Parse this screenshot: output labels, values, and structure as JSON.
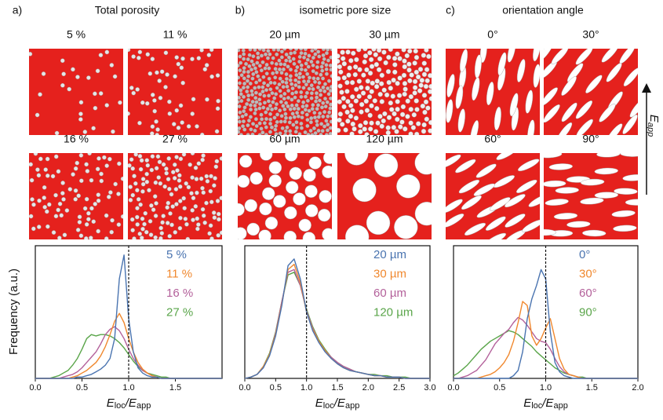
{
  "chart_data": [
    {
      "type": "line",
      "panel": "a)",
      "title": "Total porosity",
      "images": [
        "5 %",
        "11 %",
        "16 %",
        "27 %"
      ],
      "ylabel": "Frequency (a.u.)",
      "xlabel": {
        "main": "E",
        "sub": "loc",
        "main2": "/E",
        "sub2": "app"
      },
      "x": [
        0,
        0.05,
        0.1,
        0.15,
        0.2,
        0.25,
        0.3,
        0.35,
        0.4,
        0.45,
        0.5,
        0.55,
        0.6,
        0.65,
        0.7,
        0.75,
        0.8,
        0.85,
        0.9,
        0.95,
        1,
        1.05,
        1.1,
        1.15,
        1.2,
        1.25,
        1.3,
        1.35,
        1.4,
        1.45,
        1.5,
        1.55,
        1.6,
        1.65,
        1.7,
        1.75,
        1.8,
        1.85,
        1.9,
        1.95,
        2
      ],
      "series": [
        {
          "name": "5 %",
          "color": "#4a74b0",
          "values": [
            0,
            0,
            0,
            0,
            0,
            0,
            0,
            0,
            0,
            0.01,
            0.01,
            0.02,
            0.03,
            0.05,
            0.07,
            0.1,
            0.15,
            0.3,
            0.75,
            0.93,
            0.45,
            0.2,
            0.08,
            0.04,
            0.02,
            0.01,
            0.01,
            0,
            0,
            0,
            0,
            0,
            0,
            0,
            0,
            0,
            0,
            0,
            0,
            0,
            0
          ]
        },
        {
          "name": "11 %",
          "color": "#f0882e",
          "values": [
            0,
            0,
            0,
            0,
            0,
            0,
            0,
            0,
            0.01,
            0.02,
            0.04,
            0.06,
            0.09,
            0.12,
            0.17,
            0.24,
            0.33,
            0.43,
            0.49,
            0.42,
            0.3,
            0.2,
            0.12,
            0.07,
            0.04,
            0.02,
            0.01,
            0,
            0,
            0,
            0,
            0,
            0,
            0,
            0,
            0,
            0,
            0,
            0,
            0,
            0
          ]
        },
        {
          "name": "16 %",
          "color": "#b3609a",
          "values": [
            0,
            0,
            0,
            0,
            0,
            0,
            0.01,
            0.02,
            0.03,
            0.05,
            0.08,
            0.12,
            0.16,
            0.2,
            0.26,
            0.33,
            0.37,
            0.39,
            0.36,
            0.3,
            0.22,
            0.15,
            0.1,
            0.06,
            0.04,
            0.02,
            0.01,
            0,
            0,
            0,
            0,
            0,
            0,
            0,
            0,
            0,
            0,
            0,
            0,
            0,
            0
          ]
        },
        {
          "name": "27 %",
          "color": "#5aa54a",
          "values": [
            0,
            0,
            0,
            0,
            0.01,
            0.02,
            0.04,
            0.06,
            0.1,
            0.15,
            0.22,
            0.3,
            0.33,
            0.32,
            0.33,
            0.33,
            0.32,
            0.3,
            0.27,
            0.23,
            0.18,
            0.13,
            0.09,
            0.06,
            0.04,
            0.03,
            0.02,
            0.01,
            0.01,
            0,
            0,
            0,
            0,
            0,
            0,
            0,
            0,
            0,
            0,
            0,
            0
          ]
        }
      ],
      "xlim": [
        0,
        2
      ],
      "ylim": [
        0,
        1
      ],
      "xticks": [
        {
          "value": 0,
          "label": "0.0"
        },
        0.5,
        {
          "value": 1,
          "label": "1.0"
        },
        1.5
      ],
      "vline": 1,
      "legend": "upper right"
    },
    {
      "type": "line",
      "panel": "b)",
      "title": "isometric pore size",
      "images": [
        "20 µm",
        "30 µm",
        "60 µm",
        "120 µm"
      ],
      "xlabel": {
        "main": "E",
        "sub": "loc",
        "main2": "/E",
        "sub2": "app"
      },
      "x": [
        0,
        0.1,
        0.2,
        0.3,
        0.4,
        0.5,
        0.6,
        0.7,
        0.8,
        0.9,
        1,
        1.1,
        1.2,
        1.3,
        1.4,
        1.5,
        1.6,
        1.7,
        1.8,
        1.9,
        2,
        2.1,
        2.2,
        2.3,
        2.4,
        2.5,
        2.6,
        2.7,
        2.8,
        2.9,
        3
      ],
      "series": [
        {
          "name": "20 µm",
          "color": "#4a74b0",
          "values": [
            0,
            0.01,
            0.03,
            0.08,
            0.17,
            0.32,
            0.55,
            0.85,
            0.9,
            0.75,
            0.5,
            0.36,
            0.27,
            0.2,
            0.15,
            0.11,
            0.08,
            0.06,
            0.05,
            0.04,
            0.03,
            0.02,
            0.02,
            0.01,
            0.01,
            0.01,
            0,
            0,
            0,
            0,
            0
          ]
        },
        {
          "name": "30 µm",
          "color": "#f0882e",
          "values": [
            0,
            0.01,
            0.03,
            0.09,
            0.18,
            0.33,
            0.56,
            0.82,
            0.86,
            0.72,
            0.5,
            0.37,
            0.28,
            0.21,
            0.15,
            0.11,
            0.08,
            0.06,
            0.05,
            0.04,
            0.03,
            0.02,
            0.02,
            0.01,
            0.01,
            0.01,
            0,
            0,
            0,
            0,
            0
          ]
        },
        {
          "name": "60 µm",
          "color": "#b3609a",
          "values": [
            0,
            0.01,
            0.03,
            0.08,
            0.18,
            0.34,
            0.58,
            0.8,
            0.82,
            0.7,
            0.51,
            0.38,
            0.28,
            0.21,
            0.16,
            0.12,
            0.09,
            0.07,
            0.05,
            0.04,
            0.03,
            0.02,
            0.02,
            0.01,
            0.01,
            0.01,
            0,
            0,
            0,
            0,
            0
          ]
        },
        {
          "name": "120 µm",
          "color": "#5aa54a",
          "values": [
            0,
            0.01,
            0.03,
            0.09,
            0.19,
            0.35,
            0.58,
            0.78,
            0.8,
            0.7,
            0.52,
            0.39,
            0.29,
            0.22,
            0.16,
            0.12,
            0.09,
            0.07,
            0.05,
            0.04,
            0.03,
            0.03,
            0.02,
            0.02,
            0.01,
            0.01,
            0.01,
            0,
            0,
            0,
            0
          ]
        }
      ],
      "xlim": [
        0,
        3
      ],
      "ylim": [
        0,
        1
      ],
      "xticks": [
        {
          "value": 0,
          "label": "0.0"
        },
        0.5,
        {
          "value": 1,
          "label": "1.0"
        },
        1.5,
        {
          "value": 2,
          "label": "2.0"
        },
        2.5,
        {
          "value": 3,
          "label": "3.0"
        }
      ],
      "vline": 1,
      "legend": "upper right"
    },
    {
      "type": "line",
      "panel": "c)",
      "title": "orientation angle",
      "images": [
        "0°",
        "30°",
        "60°",
        "90°"
      ],
      "annotation": {
        "main": "E",
        "sub": "app"
      },
      "xlabel": {
        "main": "E",
        "sub": "loc",
        "main2": "/E",
        "sub2": "app"
      },
      "x": [
        0,
        0.05,
        0.1,
        0.15,
        0.2,
        0.25,
        0.3,
        0.35,
        0.4,
        0.45,
        0.5,
        0.55,
        0.6,
        0.65,
        0.7,
        0.75,
        0.8,
        0.85,
        0.9,
        0.95,
        1,
        1.05,
        1.1,
        1.15,
        1.2,
        1.25,
        1.3,
        1.35,
        1.4,
        1.45,
        1.5,
        1.55,
        1.6,
        1.65,
        1.7,
        1.75,
        1.8,
        1.85,
        1.9,
        1.95,
        2
      ],
      "series": [
        {
          "name": "0°",
          "color": "#4a74b0",
          "values": [
            0,
            0,
            0,
            0,
            0,
            0,
            0,
            0,
            0,
            0,
            0,
            0,
            0,
            0.02,
            0.06,
            0.2,
            0.45,
            0.6,
            0.7,
            0.82,
            0.75,
            0.35,
            0.12,
            0.05,
            0.02,
            0.01,
            0,
            0,
            0,
            0,
            0,
            0,
            0,
            0,
            0,
            0,
            0,
            0,
            0,
            0,
            0
          ]
        },
        {
          "name": "30°",
          "color": "#f0882e",
          "values": [
            0,
            0,
            0,
            0,
            0,
            0,
            0.01,
            0.02,
            0.03,
            0.05,
            0.08,
            0.12,
            0.18,
            0.28,
            0.42,
            0.58,
            0.55,
            0.32,
            0.25,
            0.3,
            0.38,
            0.45,
            0.3,
            0.15,
            0.07,
            0.03,
            0.02,
            0.01,
            0,
            0,
            0,
            0,
            0,
            0,
            0,
            0,
            0,
            0,
            0,
            0,
            0
          ]
        },
        {
          "name": "60°",
          "color": "#b3609a",
          "values": [
            0,
            0,
            0.01,
            0.02,
            0.04,
            0.06,
            0.1,
            0.14,
            0.2,
            0.26,
            0.3,
            0.34,
            0.37,
            0.42,
            0.46,
            0.44,
            0.4,
            0.35,
            0.3,
            0.28,
            0.27,
            0.22,
            0.15,
            0.09,
            0.05,
            0.03,
            0.02,
            0.01,
            0,
            0,
            0,
            0,
            0,
            0,
            0,
            0,
            0,
            0,
            0,
            0,
            0
          ]
        },
        {
          "name": "90°",
          "color": "#5aa54a",
          "values": [
            0.02,
            0.04,
            0.07,
            0.1,
            0.14,
            0.18,
            0.22,
            0.25,
            0.28,
            0.3,
            0.32,
            0.34,
            0.36,
            0.35,
            0.33,
            0.3,
            0.27,
            0.24,
            0.2,
            0.17,
            0.14,
            0.11,
            0.08,
            0.06,
            0.04,
            0.03,
            0.02,
            0.01,
            0.01,
            0,
            0,
            0,
            0,
            0,
            0,
            0,
            0,
            0,
            0,
            0,
            0
          ]
        }
      ],
      "xlim": [
        0,
        2
      ],
      "ylim": [
        0,
        1
      ],
      "xticks": [
        {
          "value": 0,
          "label": "0.0"
        },
        0.5,
        {
          "value": 1,
          "label": "1.0"
        },
        1.5,
        {
          "value": 2,
          "label": "2.0"
        }
      ],
      "vline": 1,
      "legend": "upper right"
    }
  ]
}
